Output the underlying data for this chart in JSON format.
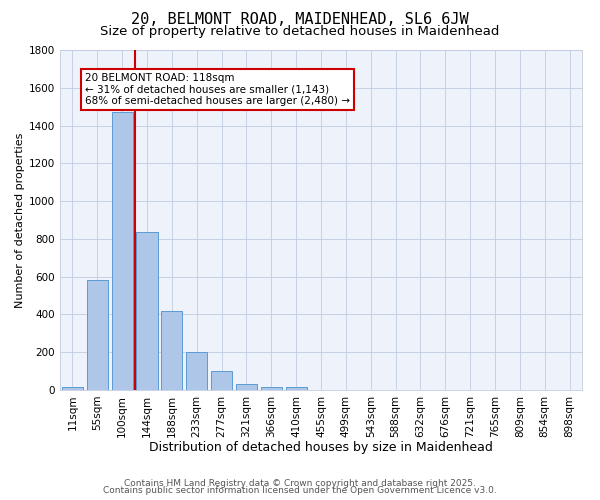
{
  "title1": "20, BELMONT ROAD, MAIDENHEAD, SL6 6JW",
  "title2": "Size of property relative to detached houses in Maidenhead",
  "xlabel": "Distribution of detached houses by size in Maidenhead",
  "ylabel": "Number of detached properties",
  "bar_labels": [
    "11sqm",
    "55sqm",
    "100sqm",
    "144sqm",
    "188sqm",
    "233sqm",
    "277sqm",
    "321sqm",
    "366sqm",
    "410sqm",
    "455sqm",
    "499sqm",
    "543sqm",
    "588sqm",
    "632sqm",
    "676sqm",
    "721sqm",
    "765sqm",
    "809sqm",
    "854sqm",
    "898sqm"
  ],
  "bar_values": [
    15,
    585,
    1470,
    835,
    420,
    200,
    100,
    32,
    18,
    15,
    2,
    0,
    0,
    0,
    0,
    0,
    0,
    0,
    0,
    0,
    0
  ],
  "bar_color": "#aec6e8",
  "bar_edge_color": "#5b9bd5",
  "background_color": "#eef2fb",
  "grid_color": "#c0cce0",
  "vline_x_index": 2,
  "vline_color": "#cc0000",
  "annotation_box_text": "20 BELMONT ROAD: 118sqm\n← 31% of detached houses are smaller (1,143)\n68% of semi-detached houses are larger (2,480) →",
  "annotation_box_color": "#cc0000",
  "ylim": [
    0,
    1800
  ],
  "yticks": [
    0,
    200,
    400,
    600,
    800,
    1000,
    1200,
    1400,
    1600,
    1800
  ],
  "footer1": "Contains HM Land Registry data © Crown copyright and database right 2025.",
  "footer2": "Contains public sector information licensed under the Open Government Licence v3.0.",
  "title1_fontsize": 11,
  "title2_fontsize": 9.5,
  "xlabel_fontsize": 9,
  "ylabel_fontsize": 8,
  "tick_fontsize": 7.5,
  "footer_fontsize": 6.5
}
